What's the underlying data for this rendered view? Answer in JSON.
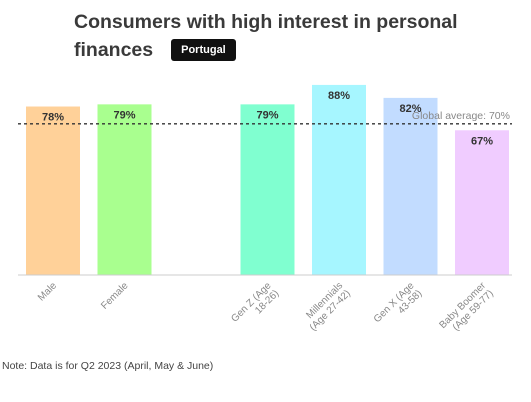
{
  "title": "Consumers with high interest in personal finances",
  "badge": "Portugal",
  "note": "Note: Data is for Q2 2023 (April, May & June)",
  "chart_data": {
    "type": "bar",
    "categories": [
      "Male",
      "Female",
      "",
      "Gen Z (Age 18-26)",
      "Millennials (Age 27-42)",
      "Gen X (Age 43-58)",
      "Baby Boomer (Age 59-77)"
    ],
    "tick_lines": [
      [
        "Male"
      ],
      [
        "Female"
      ],
      [],
      [
        "Gen Z (Age",
        "18-26)"
      ],
      [
        "Millennials",
        "(Age 27-42)"
      ],
      [
        "Gen X (Age",
        "43-58)"
      ],
      [
        "Baby Boomer",
        "(Age 59-77)"
      ]
    ],
    "values": [
      78,
      79,
      null,
      79,
      88,
      82,
      67
    ],
    "data_labels": [
      "78%",
      "79%",
      "",
      "79%",
      "88%",
      "82%",
      "67%"
    ],
    "colors": [
      "#ffd199",
      "#a9ff8f",
      "",
      "#80ffd0",
      "#a6f6ff",
      "#c2dcff",
      "#f0ccff"
    ],
    "ylim": [
      0,
      100
    ],
    "reference_line": {
      "value": 70,
      "label": "Global average: 70%"
    },
    "grid": false,
    "legend": "none",
    "xlabel": "",
    "ylabel": ""
  }
}
